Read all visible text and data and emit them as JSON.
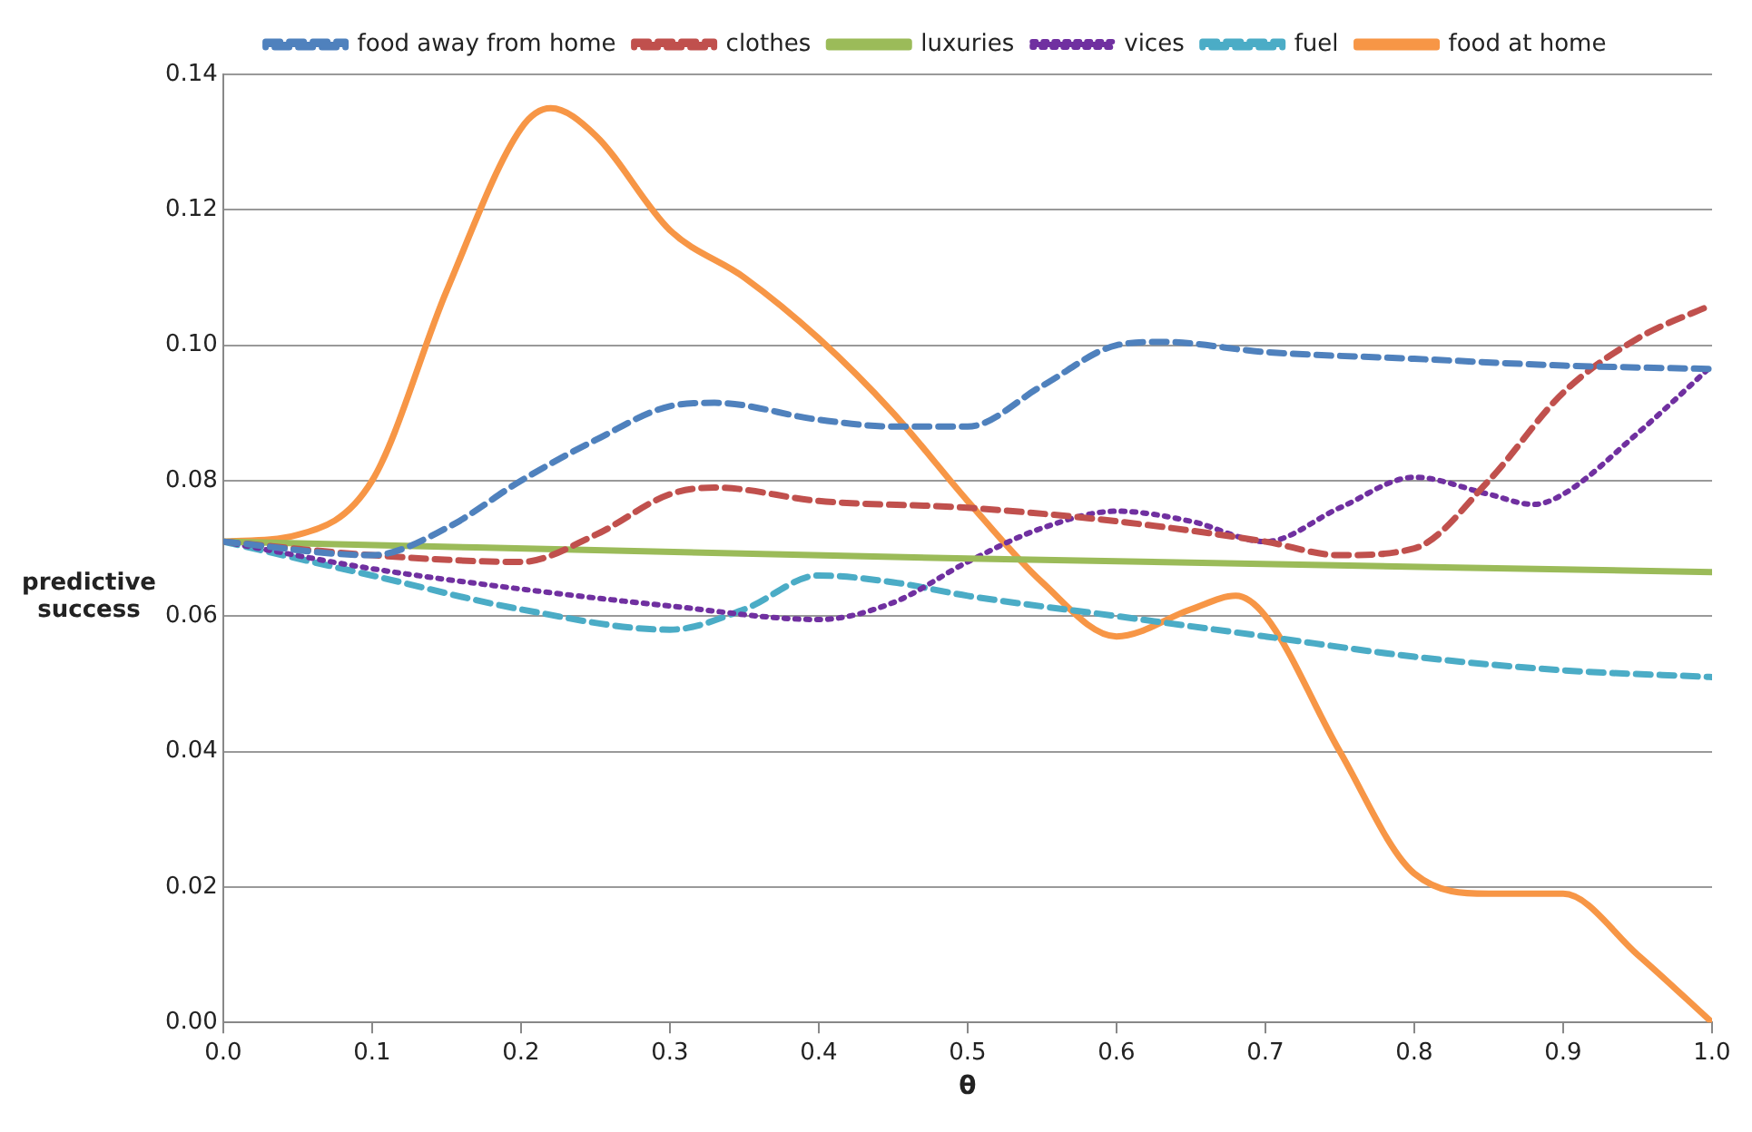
{
  "chart_data": {
    "type": "line",
    "xlabel": "θ",
    "ylabel": "predictive success",
    "xlim": [
      0,
      1
    ],
    "ylim": [
      0,
      0.14
    ],
    "xticks": [
      {
        "value": 0,
        "label": "0.0"
      },
      {
        "value": 0.1,
        "label": "0.1"
      },
      {
        "value": 0.2,
        "label": "0.2"
      },
      {
        "value": 0.3,
        "label": "0.3"
      },
      {
        "value": 0.4,
        "label": "0.4"
      },
      {
        "value": 0.5,
        "label": "0.5"
      },
      {
        "value": 0.6,
        "label": "0.6"
      },
      {
        "value": 0.7,
        "label": "0.7"
      },
      {
        "value": 0.8,
        "label": "0.8"
      },
      {
        "value": 0.9,
        "label": "0.9"
      },
      {
        "value": 1,
        "label": "1.0"
      }
    ],
    "yticks": [
      {
        "value": 0,
        "label": "0.00"
      },
      {
        "value": 0.02,
        "label": "0.02"
      },
      {
        "value": 0.04,
        "label": "0.04"
      },
      {
        "value": 0.06,
        "label": "0.06"
      },
      {
        "value": 0.08,
        "label": "0.08"
      },
      {
        "value": 0.1,
        "label": "0.10"
      },
      {
        "value": 0.12,
        "label": "0.12"
      },
      {
        "value": 0.14,
        "label": "0.14"
      }
    ],
    "grid": "y",
    "legend": "top",
    "marker": "none",
    "series": [
      {
        "name": "food away from home",
        "color": "#4f81bd",
        "line_style": "dashed",
        "x": [
          0,
          0.1,
          0.15,
          0.2,
          0.25,
          0.3,
          0.33,
          0.4,
          0.45,
          0.5,
          0.55,
          0.6,
          0.63,
          0.7,
          0.8,
          0.9,
          1
        ],
        "values": [
          0.071,
          0.069,
          0.073,
          0.08,
          0.086,
          0.091,
          0.0915,
          0.089,
          0.088,
          0.088,
          0.094,
          0.1,
          0.1005,
          0.099,
          0.098,
          0.097,
          0.0965
        ]
      },
      {
        "name": "clothes",
        "color": "#c0504d",
        "line_style": "dashed",
        "x": [
          0,
          0.1,
          0.2,
          0.25,
          0.3,
          0.33,
          0.4,
          0.5,
          0.6,
          0.7,
          0.75,
          0.8,
          0.85,
          0.9,
          0.95,
          1
        ],
        "values": [
          0.071,
          0.069,
          0.068,
          0.072,
          0.078,
          0.079,
          0.077,
          0.076,
          0.074,
          0.071,
          0.069,
          0.07,
          0.08,
          0.093,
          0.101,
          0.106
        ]
      },
      {
        "name": "luxuries",
        "color": "#9bbb59",
        "line_style": "solid",
        "x": [
          0,
          0.5,
          1
        ],
        "values": [
          0.071,
          0.0685,
          0.0665
        ]
      },
      {
        "name": "vices",
        "color": "#7030a0",
        "line_style": "dotted",
        "x": [
          0,
          0.1,
          0.2,
          0.3,
          0.4,
          0.45,
          0.5,
          0.55,
          0.6,
          0.65,
          0.7,
          0.75,
          0.8,
          0.85,
          0.88,
          0.9,
          0.95,
          1
        ],
        "values": [
          0.071,
          0.067,
          0.064,
          0.0615,
          0.0595,
          0.062,
          0.068,
          0.073,
          0.0755,
          0.074,
          0.071,
          0.076,
          0.0805,
          0.078,
          0.0765,
          0.078,
          0.087,
          0.097
        ]
      },
      {
        "name": "fuel",
        "color": "#4bacc6",
        "line_style": "dashed",
        "x": [
          0,
          0.1,
          0.2,
          0.3,
          0.35,
          0.4,
          0.45,
          0.5,
          0.6,
          0.7,
          0.8,
          0.9,
          1
        ],
        "values": [
          0.071,
          0.066,
          0.061,
          0.058,
          0.061,
          0.066,
          0.065,
          0.063,
          0.06,
          0.057,
          0.054,
          0.052,
          0.051
        ]
      },
      {
        "name": "food at home",
        "color": "#f79646",
        "line_style": "solid",
        "x": [
          0,
          0.05,
          0.1,
          0.15,
          0.2,
          0.22,
          0.25,
          0.3,
          0.35,
          0.4,
          0.45,
          0.5,
          0.55,
          0.6,
          0.65,
          0.68,
          0.7,
          0.75,
          0.8,
          0.85,
          0.9,
          0.95,
          1
        ],
        "values": [
          0.071,
          0.072,
          0.08,
          0.108,
          0.132,
          0.135,
          0.131,
          0.117,
          0.11,
          0.101,
          0.09,
          0.077,
          0.065,
          0.057,
          0.061,
          0.063,
          0.06,
          0.04,
          0.022,
          0.019,
          0.019,
          0.01,
          0
        ]
      }
    ]
  }
}
